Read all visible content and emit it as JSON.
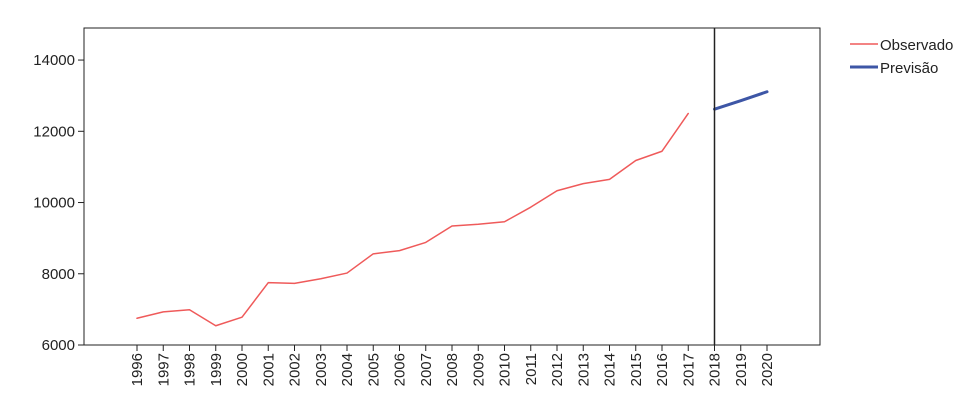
{
  "chart_data": {
    "type": "line",
    "title": "",
    "xlabel": "",
    "ylabel": "",
    "x": [
      "1996",
      "1997",
      "1998",
      "1999",
      "2000",
      "2001",
      "2002",
      "2003",
      "2004",
      "2005",
      "2006",
      "2007",
      "2008",
      "2009",
      "2010",
      "2011",
      "2012",
      "2013",
      "2014",
      "2015",
      "2016",
      "2017",
      "2018",
      "2019",
      "2020"
    ],
    "series": [
      {
        "name": "Observado",
        "color": "#ef5a5a",
        "x": [
          "1996",
          "1997",
          "1998",
          "1999",
          "2000",
          "2001",
          "2002",
          "2003",
          "2004",
          "2005",
          "2006",
          "2007",
          "2008",
          "2009",
          "2010",
          "2011",
          "2012",
          "2013",
          "2014",
          "2015",
          "2016",
          "2017"
        ],
        "values": [
          6750,
          6930,
          6990,
          6540,
          6780,
          7750,
          7730,
          7860,
          8020,
          8560,
          8650,
          8880,
          9340,
          9390,
          9460,
          9870,
          10330,
          10530,
          10650,
          11180,
          11440,
          12500
        ]
      },
      {
        "name": "Previsão",
        "color": "#3d56a6",
        "x": [
          "2018",
          "2019",
          "2020"
        ],
        "values": [
          12620,
          12860,
          13110
        ]
      }
    ],
    "vline_at": "2018",
    "ylim": [
      6000,
      14900
    ],
    "yticks": [
      6000,
      8000,
      10000,
      12000,
      14000
    ],
    "ytick_labels": [
      "6000",
      "8000",
      "10000",
      "12000",
      "14000"
    ],
    "grid": false,
    "legend_position": "right"
  }
}
